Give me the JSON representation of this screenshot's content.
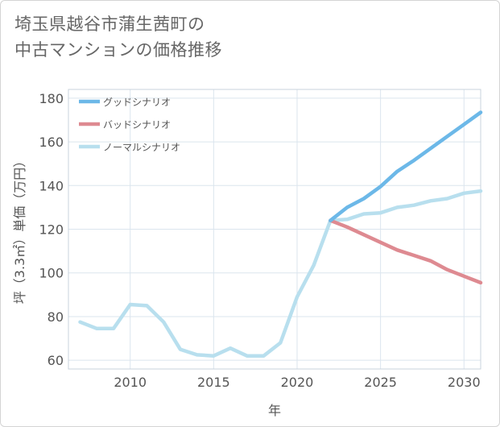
{
  "title_line1": "埼玉県越谷市蒲生茜町の",
  "title_line2": "中古マンションの価格推移",
  "chart_data": {
    "type": "line",
    "xlabel": "年",
    "ylabel": "坪（3.3㎡）単価（万円）",
    "xlim": [
      2006.3,
      2031
    ],
    "ylim": [
      56,
      184
    ],
    "xticks": [
      2010,
      2015,
      2020,
      2025,
      2030
    ],
    "yticks": [
      60,
      80,
      100,
      120,
      140,
      160,
      180
    ],
    "grid": true,
    "legend_position": "top-left",
    "series": [
      {
        "name": "グッドシナリオ",
        "color": "#6cb8e8",
        "x": [
          2022,
          2023,
          2024,
          2025,
          2026,
          2027,
          2028,
          2029,
          2030,
          2031
        ],
        "values": [
          124,
          130,
          134,
          139.5,
          146.5,
          151.5,
          157,
          162.5,
          168,
          173.5
        ]
      },
      {
        "name": "バッドシナリオ",
        "color": "#de8a91",
        "x": [
          2022,
          2023,
          2024,
          2025,
          2026,
          2027,
          2028,
          2029,
          2030,
          2031
        ],
        "values": [
          124,
          121,
          117.5,
          114,
          110.5,
          108,
          105.5,
          101.5,
          98.5,
          95.5
        ]
      },
      {
        "name": "ノーマルシナリオ",
        "color": "#b8dfee",
        "x": [
          2007,
          2008,
          2009,
          2010,
          2011,
          2012,
          2013,
          2014,
          2015,
          2016,
          2017,
          2018,
          2019,
          2020,
          2021,
          2022,
          2023,
          2024,
          2025,
          2026,
          2027,
          2028,
          2029,
          2030,
          2031
        ],
        "values": [
          77.5,
          74.5,
          74.5,
          85.5,
          85,
          77.5,
          65,
          62.5,
          62,
          65.5,
          62,
          62,
          68,
          89,
          103.5,
          124,
          124.5,
          127,
          127.5,
          130,
          131,
          133,
          134,
          136.5,
          137.5
        ]
      }
    ]
  }
}
